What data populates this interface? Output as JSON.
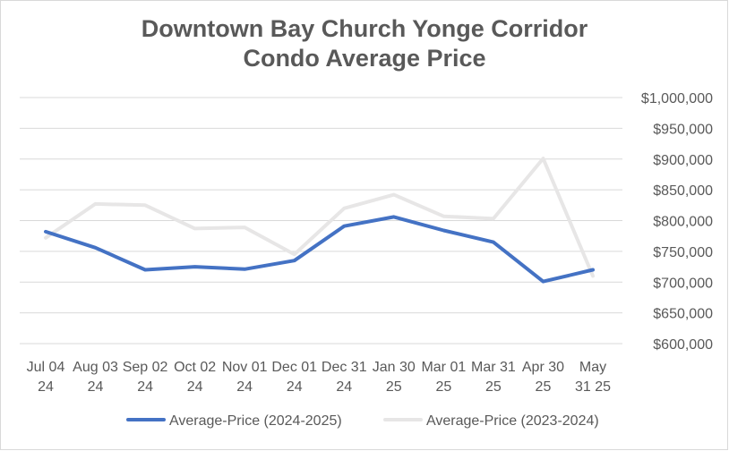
{
  "chart_data": {
    "type": "line",
    "title_lines": [
      "Downtown Bay Church Yonge Corridor",
      "Condo Average Price"
    ],
    "categories": [
      [
        "Jul 04",
        "24"
      ],
      [
        "Aug 03",
        "24"
      ],
      [
        "Sep 02",
        "24"
      ],
      [
        "Oct 02",
        "24"
      ],
      [
        "Nov 01",
        "24"
      ],
      [
        "Dec 01",
        "24"
      ],
      [
        "Dec 31",
        "24"
      ],
      [
        "Jan 30",
        "25"
      ],
      [
        "Mar 01",
        "25"
      ],
      [
        "Mar 31",
        "25"
      ],
      [
        "Apr 30",
        "25"
      ],
      [
        "May",
        "31 25"
      ]
    ],
    "series": [
      {
        "name": "Average-Price (2024-2025)",
        "color": "#4472c4",
        "values": [
          782000,
          756000,
          720000,
          725000,
          721000,
          735000,
          791000,
          806000,
          784000,
          765000,
          701000,
          720000
        ]
      },
      {
        "name": "Average-Price (2023-2024)",
        "color": "#e7e6e6",
        "values": [
          772000,
          827000,
          825000,
          787000,
          789000,
          745000,
          820000,
          842000,
          807000,
          803000,
          901000,
          710000
        ]
      }
    ],
    "y_ticks": [
      "$600,000",
      "$650,000",
      "$700,000",
      "$750,000",
      "$800,000",
      "$850,000",
      "$900,000",
      "$950,000",
      "$1,000,000"
    ],
    "ylim": [
      600000,
      1000000
    ],
    "y_axis_side": "right",
    "grid": true,
    "legend_position": "bottom"
  }
}
